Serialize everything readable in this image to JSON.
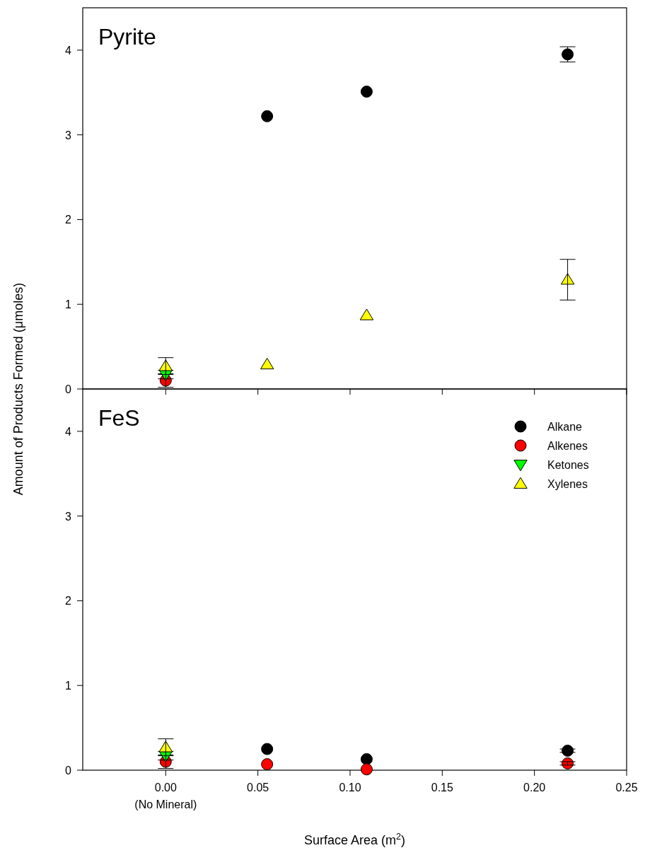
{
  "chart_data": [
    {
      "type": "scatter",
      "title": "Pyrite",
      "ylabel": "Amount of Products Formed (μmoles)",
      "x": [
        0,
        0.055,
        0.109,
        0.218
      ],
      "xlim": [
        -0.045,
        0.25
      ],
      "ylim": [
        0,
        4.5
      ],
      "xticks": [
        0,
        0.05,
        0.1,
        0.15,
        0.2,
        0.25
      ],
      "yticks": [
        0,
        1,
        2,
        3,
        4
      ],
      "tick_labels": "y",
      "grid": false,
      "legend": false,
      "series": [
        {
          "color": "#000000",
          "marker": "circle",
          "values": [
            null,
            3.22,
            3.51,
            3.95
          ],
          "errors": [
            null,
            null,
            null,
            0.09
          ]
        },
        {
          "color": "#ff0000",
          "marker": "circle",
          "values": [
            0.1,
            null,
            null,
            null
          ],
          "errors": [
            0.08,
            null,
            null,
            null
          ]
        },
        {
          "color": "#00ff00",
          "marker": "triangle-down",
          "values": [
            0.17,
            null,
            null,
            null
          ],
          "errors": [
            0.05,
            null,
            null,
            null
          ]
        },
        {
          "color": "#ffff00",
          "marker": "triangle",
          "values": [
            0.27,
            0.29,
            0.87,
            1.29
          ],
          "errors": [
            0.1,
            null,
            null,
            0.24
          ]
        }
      ]
    },
    {
      "type": "scatter",
      "title": "FeS",
      "xlabel": "Surface Area (m$^{2}$)",
      "x": [
        0,
        0.055,
        0.109,
        0.218
      ],
      "xlim": [
        -0.045,
        0.25
      ],
      "ylim": [
        0,
        4.5
      ],
      "xticks": [
        {
          "value": 0,
          "label": "0.00\n(No Mineral)"
        },
        {
          "value": 0.05,
          "label": "0.05"
        },
        {
          "value": 0.1,
          "label": "0.10"
        },
        {
          "value": 0.15,
          "label": "0.15"
        },
        {
          "value": 0.2,
          "label": "0.20"
        },
        {
          "value": 0.25,
          "label": "0.25"
        }
      ],
      "yticks": [
        0,
        1,
        2,
        3,
        4
      ],
      "grid": false,
      "legend": "top right",
      "series": [
        {
          "name": "Alkane",
          "color": "#000000",
          "marker": "circle",
          "values": [
            null,
            0.25,
            0.13,
            0.23
          ],
          "errors": [
            null,
            null,
            null,
            0.02
          ]
        },
        {
          "name": "Alkenes",
          "color": "#ff0000",
          "marker": "circle",
          "values": [
            0.1,
            0.07,
            0.01,
            0.08
          ],
          "errors": [
            0.08,
            null,
            null,
            0.02
          ]
        },
        {
          "name": "Ketones",
          "color": "#00ff00",
          "marker": "triangle-down",
          "values": [
            0.17,
            null,
            null,
            null
          ],
          "errors": [
            0.05,
            null,
            null,
            null
          ]
        },
        {
          "name": "Xylenes",
          "color": "#ffff00",
          "marker": "triangle",
          "values": [
            0.27,
            null,
            null,
            null
          ],
          "errors": [
            0.1,
            null,
            null,
            null
          ]
        }
      ]
    }
  ]
}
